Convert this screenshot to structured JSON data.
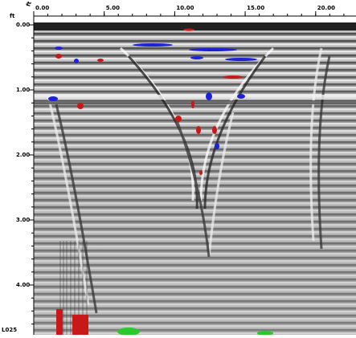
{
  "axes": {
    "x_unit": "ft",
    "y_unit": "ft",
    "x_ticks": [
      "0.00",
      "5.00",
      "10.00",
      "15.00",
      "20.00"
    ],
    "y_ticks": [
      "0.00",
      "1.00",
      "2.00",
      "3.00",
      "4.00"
    ],
    "corner_label": "L025"
  }
}
